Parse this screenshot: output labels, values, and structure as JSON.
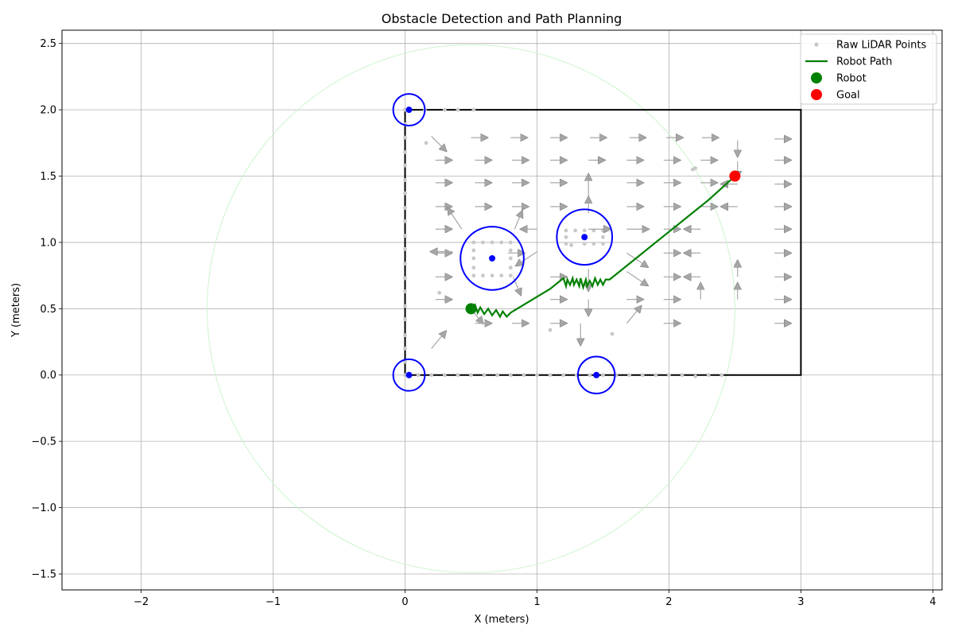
{
  "chart_data": {
    "type": "scatter",
    "title": "Obstacle Detection and Path Planning",
    "xlabel": "X (meters)",
    "ylabel": "Y (meters)",
    "xlim": [
      -2.6,
      4.07
    ],
    "ylim": [
      -1.62,
      2.6
    ],
    "xticks": [
      -2,
      -1,
      0,
      1,
      2,
      3,
      4
    ],
    "yticks": [
      -1.5,
      -1.0,
      -0.5,
      0.0,
      0.5,
      1.0,
      1.5,
      2.0,
      2.5
    ],
    "xtick_labels": [
      "−2",
      "−1",
      "0",
      "1",
      "2",
      "3",
      "4"
    ],
    "ytick_labels": [
      "−1.5",
      "−1.0",
      "−0.5",
      "0.0",
      "0.5",
      "1.0",
      "1.5",
      "2.0",
      "2.5"
    ],
    "grid": true,
    "legend_position": "top-right",
    "legend": [
      {
        "label": "Raw LiDAR Points",
        "marker": "small-dot",
        "color": "#c8c8c8"
      },
      {
        "label": "Robot Path",
        "marker": "line",
        "color": "#008000"
      },
      {
        "label": "Robot",
        "marker": "dot",
        "color": "#008000"
      },
      {
        "label": "Goal",
        "marker": "dot",
        "color": "#ff0000"
      }
    ],
    "colors": {
      "boundary": "#000000",
      "obstacle_circle": "#0000ff",
      "sensor_range": "#ccf5cc",
      "arrow": "#a6a6a6",
      "lidar": "#c8c8c8",
      "path": "#008000",
      "robot": "#008000",
      "goal": "#ff0000"
    },
    "room_boundary": {
      "x": [
        0,
        3,
        3,
        0,
        0
      ],
      "y": [
        0,
        0,
        2,
        2,
        0
      ]
    },
    "sensor_range": {
      "center": [
        0.5,
        0.5
      ],
      "radius": 2.0
    },
    "obstacles": [
      {
        "center": [
          0.03,
          2.0
        ],
        "radius": 0.12
      },
      {
        "center": [
          0.03,
          0.0
        ],
        "radius": 0.12
      },
      {
        "center": [
          1.45,
          0.0
        ],
        "radius": 0.14
      },
      {
        "center": [
          0.66,
          0.88
        ],
        "radius": 0.24
      },
      {
        "center": [
          1.36,
          1.04
        ],
        "radius": 0.21
      }
    ],
    "robot": {
      "x": 0.5,
      "y": 0.5
    },
    "goal": {
      "x": 2.5,
      "y": 1.5
    },
    "path": {
      "x": [
        0.5,
        0.53,
        0.55,
        0.57,
        0.6,
        0.63,
        0.66,
        0.69,
        0.72,
        0.74,
        0.77,
        0.8,
        0.85,
        0.9,
        0.95,
        1.0,
        1.05,
        1.1,
        1.15,
        1.2,
        1.22,
        1.23,
        1.25,
        1.27,
        1.28,
        1.3,
        1.32,
        1.33,
        1.35,
        1.37,
        1.38,
        1.4,
        1.42,
        1.44,
        1.46,
        1.48,
        1.5,
        1.52,
        1.55,
        1.6,
        1.7,
        1.8,
        1.9,
        2.0,
        2.1,
        2.2,
        2.3,
        2.4,
        2.5
      ],
      "y": [
        0.5,
        0.53,
        0.47,
        0.51,
        0.46,
        0.5,
        0.45,
        0.49,
        0.44,
        0.48,
        0.44,
        0.47,
        0.5,
        0.53,
        0.56,
        0.59,
        0.62,
        0.65,
        0.69,
        0.73,
        0.67,
        0.72,
        0.68,
        0.73,
        0.68,
        0.72,
        0.67,
        0.73,
        0.66,
        0.72,
        0.67,
        0.71,
        0.67,
        0.73,
        0.68,
        0.72,
        0.68,
        0.72,
        0.72,
        0.76,
        0.84,
        0.92,
        1.0,
        1.08,
        1.16,
        1.24,
        1.32,
        1.41,
        1.5
      ]
    },
    "lidar_points": {
      "x": [
        0.0,
        0.0,
        0.0,
        0.0,
        0.0,
        0.0,
        0.0,
        0.0,
        0.0,
        0.0,
        0.0,
        0.0,
        0.0,
        0.0,
        0.0,
        0.0,
        0.0,
        0.0,
        0.0,
        0.0,
        0.1,
        0.2,
        0.3,
        0.4,
        0.5,
        0.6,
        0.7,
        0.8,
        0.9,
        1.0,
        1.1,
        1.2,
        1.3,
        1.4,
        1.5,
        1.6,
        1.7,
        1.8,
        1.9,
        2.0,
        2.1,
        2.2,
        2.3,
        2.4,
        0.15,
        0.3,
        0.4,
        0.52,
        0.16,
        0.26,
        1.1,
        1.57,
        2.18,
        2.2,
        0.52,
        0.59,
        0.66,
        0.73,
        0.8,
        0.52,
        0.8,
        0.52,
        0.8,
        0.52,
        0.8,
        0.52,
        0.59,
        0.66,
        0.73,
        0.8,
        1.22,
        1.29,
        1.36,
        1.43,
        1.5,
        1.22,
        1.5,
        1.22,
        1.26,
        1.36,
        1.43,
        1.5
      ],
      "y": [
        0.0,
        0.1,
        0.2,
        0.3,
        0.42,
        0.52,
        0.63,
        0.73,
        0.84,
        0.95,
        1.05,
        1.16,
        1.26,
        1.37,
        1.47,
        1.58,
        1.68,
        1.79,
        1.89,
        2.0,
        0.0,
        0.0,
        0.0,
        0.0,
        0.0,
        0.0,
        0.0,
        0.0,
        0.0,
        0.0,
        0.0,
        0.0,
        0.0,
        0.0,
        0.0,
        0.0,
        0.0,
        0.0,
        0.0,
        0.0,
        0.0,
        -0.01,
        0.0,
        0.0,
        2.0,
        2.0,
        2.0,
        2.0,
        1.75,
        0.62,
        0.34,
        0.31,
        1.55,
        1.56,
        1.0,
        1.0,
        1.0,
        1.0,
        1.0,
        0.94,
        0.94,
        0.88,
        0.88,
        0.81,
        0.81,
        0.75,
        0.75,
        0.75,
        0.75,
        0.75,
        1.09,
        1.09,
        1.09,
        1.09,
        1.09,
        1.04,
        1.04,
        0.99,
        0.98,
        0.99,
        0.99,
        0.99
      ]
    },
    "force_field": {
      "x": [
        0.2,
        0.5,
        0.8,
        1.1,
        1.4,
        1.7,
        1.98,
        2.25,
        2.52,
        2.8,
        0.23,
        0.53,
        0.81,
        1.1,
        1.39,
        1.68,
        1.96,
        2.24,
        2.52,
        2.8,
        0.23,
        0.53,
        0.81,
        1.1,
        1.39,
        1.68,
        1.96,
        2.24,
        2.52,
        2.8,
        0.23,
        0.53,
        0.81,
        1.1,
        1.39,
        1.68,
        1.96,
        2.24,
        2.52,
        2.8,
        0.23,
        0.43,
        0.83,
        1.0,
        1.39,
        1.68,
        1.96,
        2.24,
        2.52,
        2.8,
        0.23,
        0.36,
        0.78,
        1.0,
        1.68,
        1.96,
        2.24,
        2.52,
        2.8,
        0.23,
        0.82,
        1.1,
        1.39,
        1.68,
        1.96,
        2.24,
        2.52,
        2.8,
        0.23,
        0.48,
        0.8,
        1.1,
        1.39,
        1.68,
        1.96,
        2.24,
        2.52,
        2.8,
        0.2,
        0.53,
        0.81,
        1.1,
        1.33,
        1.68,
        1.96,
        2.24,
        2.52,
        2.8
      ],
      "y": [
        1.8,
        1.79,
        1.79,
        1.79,
        1.79,
        1.79,
        1.79,
        1.79,
        1.77,
        1.78,
        1.62,
        1.62,
        1.62,
        1.62,
        1.62,
        1.62,
        1.62,
        1.62,
        1.61,
        1.62,
        1.45,
        1.45,
        1.45,
        1.45,
        1.35,
        1.45,
        1.45,
        1.45,
        1.44,
        1.44,
        1.27,
        1.27,
        1.27,
        1.27,
        1.22,
        1.27,
        1.27,
        1.27,
        1.27,
        1.27,
        1.1,
        1.1,
        1.1,
        1.1,
        1.1,
        1.1,
        1.1,
        1.1,
        1.1,
        1.1,
        0.92,
        0.93,
        0.92,
        0.93,
        0.92,
        0.92,
        0.92,
        0.92,
        0.92,
        0.74,
        0.74,
        0.74,
        0.8,
        0.78,
        0.74,
        0.74,
        0.74,
        0.74,
        0.57,
        0.52,
        0.59,
        0.57,
        0.57,
        0.57,
        0.57,
        0.57,
        0.57,
        0.57,
        0.2,
        0.39,
        0.39,
        0.39,
        0.39,
        0.39,
        0.39,
        0.39,
        0.39,
        0.39
      ],
      "u": [
        0.1,
        0.1,
        0.1,
        0.1,
        0.1,
        0.1,
        0.1,
        0.1,
        0.0,
        0.1,
        0.1,
        0.1,
        0.1,
        0.1,
        0.1,
        0.1,
        0.1,
        0.1,
        0.0,
        0.1,
        0.1,
        0.1,
        0.1,
        0.1,
        0.0,
        0.1,
        0.1,
        0.1,
        -0.1,
        0.1,
        0.1,
        0.1,
        0.1,
        0.1,
        0.0,
        0.1,
        0.1,
        0.1,
        -0.1,
        0.1,
        0.1,
        -0.1,
        0.05,
        -0.1,
        0.15,
        0.15,
        0.1,
        -0.1,
        0.0,
        0.1,
        0.1,
        -0.15,
        0.1,
        -0.15,
        0.15,
        0.1,
        -0.1,
        0.0,
        0.1,
        0.1,
        0.05,
        0.1,
        0.0,
        0.15,
        0.1,
        -0.1,
        0.0,
        0.1,
        0.1,
        0.1,
        0.0,
        0.1,
        0.0,
        0.1,
        0.1,
        0.0,
        0.0,
        0.1,
        0.1,
        0.1,
        0.1,
        0.1,
        0.0,
        0.1,
        0.1,
        0.0,
        0.0,
        0.1
      ],
      "v": [
        -0.1,
        0.0,
        0.0,
        0.0,
        0.0,
        0.0,
        0.0,
        0.0,
        -0.1,
        0.0,
        0.0,
        0.0,
        0.0,
        0.0,
        0.0,
        0.0,
        0.0,
        0.0,
        -0.1,
        0.0,
        0.0,
        0.0,
        0.0,
        0.0,
        0.15,
        0.0,
        0.0,
        0.0,
        0.0,
        0.0,
        0.0,
        0.0,
        0.0,
        0.0,
        0.1,
        0.0,
        0.0,
        0.0,
        0.0,
        0.0,
        0.0,
        0.15,
        0.12,
        0.0,
        0.0,
        0.0,
        0.0,
        0.0,
        0.0,
        0.0,
        0.0,
        0.0,
        0.0,
        -0.1,
        -0.1,
        0.0,
        0.0,
        0.0,
        0.0,
        0.0,
        -0.12,
        0.0,
        -0.15,
        -0.1,
        0.0,
        0.0,
        0.1,
        0.0,
        0.0,
        -0.12,
        0.0,
        0.0,
        -0.1,
        0.0,
        0.0,
        0.1,
        0.1,
        0.0,
        0.12,
        0.0,
        0.0,
        0.0,
        -0.15,
        0.12,
        0.0,
        0.0,
        0.0,
        0.0
      ]
    }
  }
}
